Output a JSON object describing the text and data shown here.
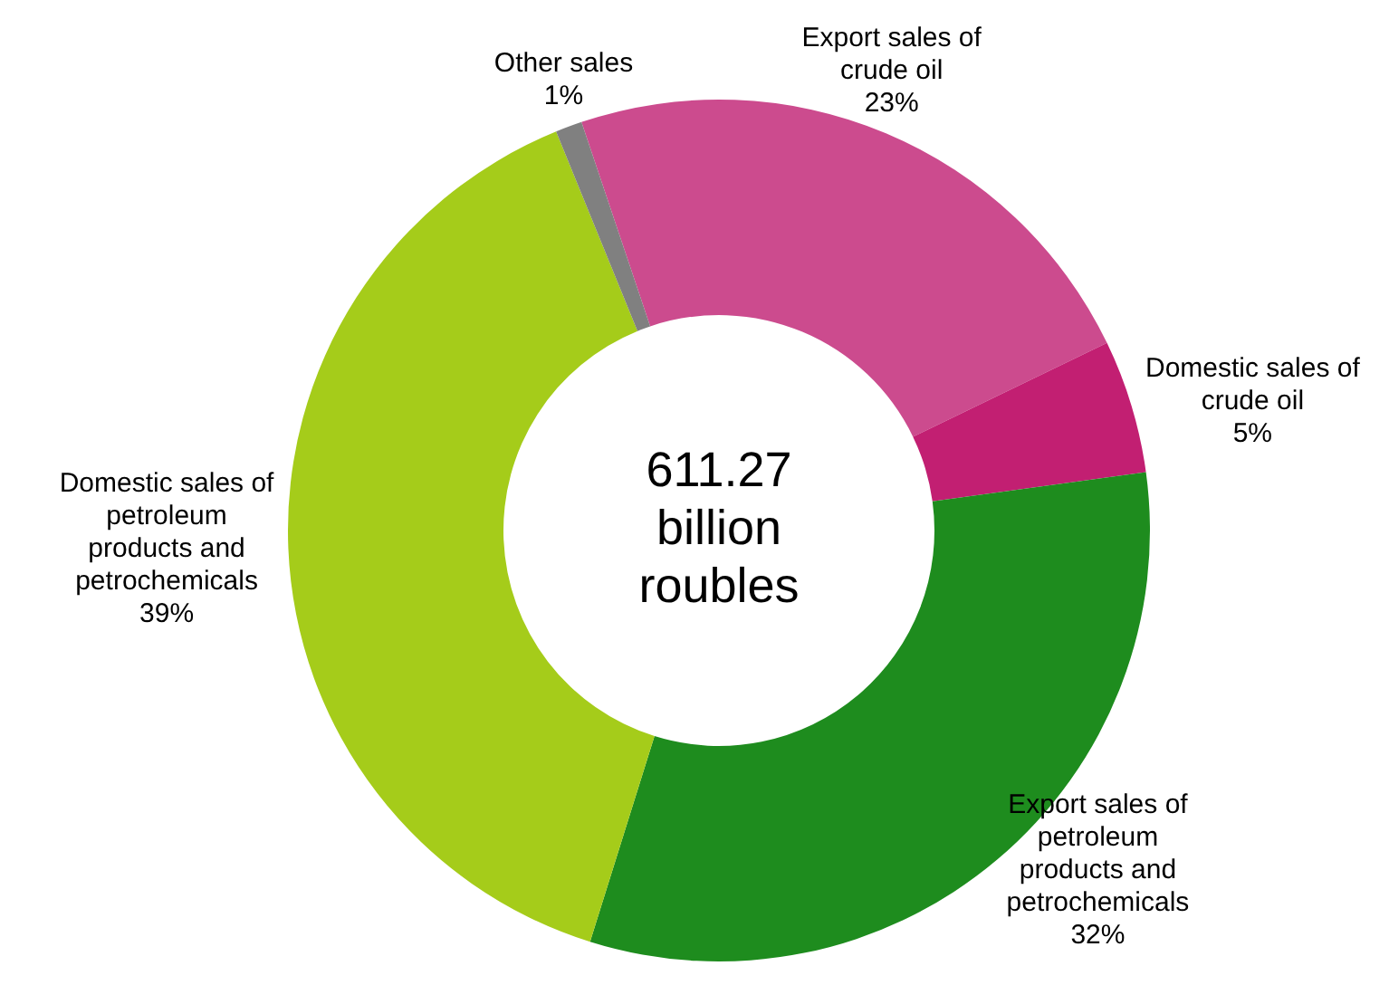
{
  "chart_data": {
    "type": "donut",
    "categories": [
      "Export sales of crude oil",
      "Domestic sales of crude oil",
      "Export sales of petroleum products and petrochemicals",
      "Domestic sales of petroleum products and petrochemicals",
      "Other sales"
    ],
    "values": [
      23,
      5,
      32,
      39,
      1
    ],
    "value_labels": [
      "23%",
      "5%",
      "32%",
      "39%",
      "1%"
    ],
    "colors": [
      "#cc4b8e",
      "#c21f72",
      "#1e8c1e",
      "#a5cc1a",
      "#808080"
    ],
    "annotations": [
      "611.27 billion roubles"
    ],
    "legend": false
  }
}
